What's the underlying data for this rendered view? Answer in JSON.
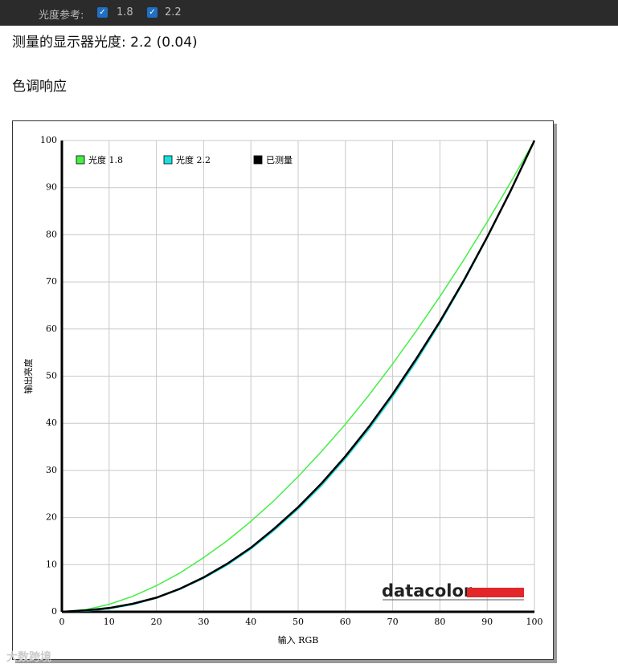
{
  "toolbar": {
    "label": "光度参考:",
    "options": [
      {
        "label": "1.8",
        "checked": true
      },
      {
        "label": "2.2",
        "checked": true
      }
    ]
  },
  "measured_gamma": "测量的显示器光度: 2.2 (0.04)",
  "section_title": "色调响应",
  "watermark": "大数跨境",
  "chart_data": {
    "type": "line",
    "logo": "datacolor",
    "x_label": "输入 RGB",
    "y_label": "输出亮度",
    "x": [
      0,
      5,
      10,
      15,
      20,
      25,
      30,
      35,
      40,
      45,
      50,
      55,
      60,
      65,
      70,
      75,
      80,
      85,
      90,
      95,
      100
    ],
    "series": [
      {
        "name": "光度 1.8",
        "color": "#44ee44",
        "values": [
          0,
          0.46,
          1.58,
          3.29,
          5.54,
          8.25,
          11.5,
          15.1,
          19.2,
          23.7,
          28.7,
          34.1,
          39.8,
          46.0,
          52.6,
          59.6,
          66.9,
          74.6,
          82.7,
          91.2,
          100
        ]
      },
      {
        "name": "光度 2.2",
        "color": "#1cdede",
        "values": [
          0,
          0.14,
          0.63,
          1.54,
          2.9,
          4.75,
          7.1,
          9.9,
          13.3,
          17.3,
          21.8,
          26.8,
          32.5,
          38.7,
          45.6,
          53.1,
          61.2,
          69.9,
          79.3,
          89.3,
          100
        ]
      },
      {
        "name": "已测量",
        "color": "#000000",
        "values": [
          0,
          0.3,
          0.8,
          1.7,
          3.0,
          4.9,
          7.3,
          10.2,
          13.6,
          17.7,
          22.2,
          27.3,
          33.0,
          39.3,
          46.2,
          53.7,
          61.6,
          70.2,
          79.5,
          89.4,
          100
        ]
      }
    ],
    "xlim": [
      0,
      100
    ],
    "ylim": [
      0,
      100
    ],
    "xticks": [
      0,
      10,
      20,
      30,
      40,
      50,
      60,
      70,
      80,
      90,
      100
    ],
    "yticks": [
      0,
      10,
      20,
      30,
      40,
      50,
      60,
      70,
      80,
      90,
      100
    ],
    "grid": true
  }
}
